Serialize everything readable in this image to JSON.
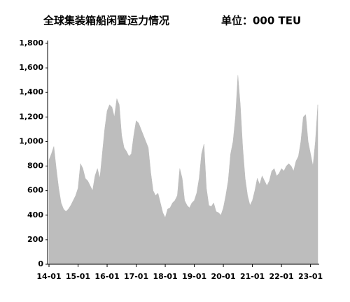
{
  "chart_data": {
    "type": "area",
    "title": "全球集装箱船闲置运力情况",
    "subtitle": "单位：000 TEU",
    "color": "#bdbdbd",
    "categories": [
      "14-01",
      null,
      null,
      null,
      null,
      null,
      null,
      null,
      null,
      null,
      null,
      null,
      "15-01",
      null,
      null,
      null,
      null,
      null,
      null,
      null,
      null,
      null,
      null,
      null,
      "16-01",
      null,
      null,
      null,
      null,
      null,
      null,
      null,
      null,
      null,
      null,
      null,
      "17-01",
      null,
      null,
      null,
      null,
      null,
      null,
      null,
      null,
      null,
      null,
      null,
      "18-01",
      null,
      null,
      null,
      null,
      null,
      null,
      null,
      null,
      null,
      null,
      null,
      "19-01",
      null,
      null,
      null,
      null,
      null,
      null,
      null,
      null,
      null,
      null,
      null,
      "20-01",
      null,
      null,
      null,
      null,
      null,
      null,
      null,
      null,
      null,
      null,
      null,
      "21-01",
      null,
      null,
      null,
      null,
      null,
      null,
      null,
      null,
      null,
      null,
      null,
      "22-01",
      null,
      null,
      null,
      null,
      null,
      null,
      null,
      null,
      null,
      null,
      null,
      "23-01",
      null,
      null,
      null
    ],
    "values": [
      850,
      900,
      960,
      780,
      620,
      500,
      450,
      430,
      450,
      480,
      520,
      560,
      620,
      820,
      780,
      700,
      680,
      640,
      600,
      720,
      780,
      700,
      900,
      1100,
      1250,
      1300,
      1280,
      1200,
      1350,
      1300,
      1050,
      950,
      920,
      880,
      900,
      1050,
      1170,
      1150,
      1100,
      1050,
      1000,
      950,
      750,
      600,
      560,
      580,
      500,
      420,
      380,
      450,
      460,
      500,
      520,
      560,
      780,
      700,
      520,
      480,
      460,
      500,
      520,
      580,
      700,
      900,
      980,
      620,
      480,
      470,
      500,
      430,
      420,
      400,
      460,
      560,
      680,
      900,
      1000,
      1200,
      1540,
      1300,
      950,
      700,
      560,
      480,
      520,
      600,
      700,
      650,
      720,
      680,
      640,
      680,
      760,
      780,
      720,
      740,
      780,
      760,
      800,
      820,
      800,
      760,
      840,
      880,
      1000,
      1200,
      1220,
      1000,
      900,
      800,
      1000,
      1300
    ],
    "ylim": [
      0,
      1800
    ],
    "yticks": [
      0,
      200,
      400,
      600,
      800,
      {
        "value": 1000,
        "label": "1,000"
      },
      {
        "value": 1200,
        "label": "1,200"
      },
      {
        "value": 1400,
        "label": "1,400"
      },
      {
        "value": 1600,
        "label": "1,600"
      },
      {
        "value": 1800,
        "label": "1,800"
      }
    ]
  }
}
